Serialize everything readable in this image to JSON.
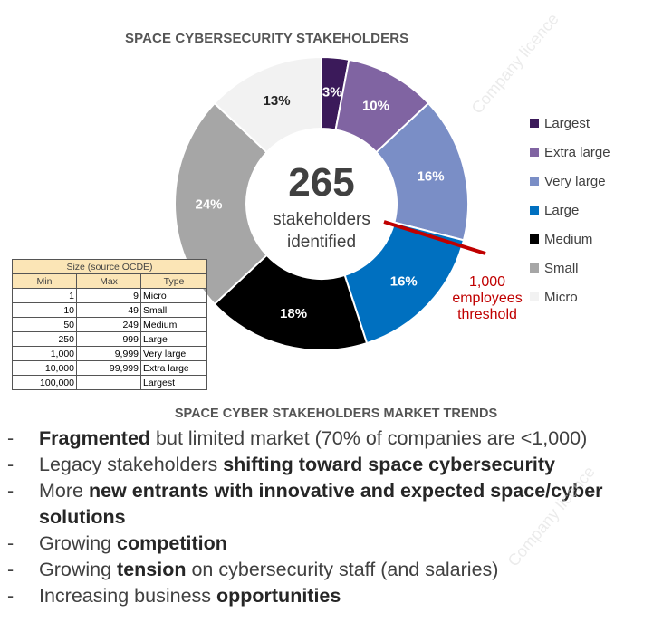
{
  "chart_data": {
    "type": "pie",
    "style": "donut",
    "title": "SPACE CYBERSECURITY STAKEHOLDERS",
    "center_value": "265",
    "center_caption_line1": "stakeholders",
    "center_caption_line2": "identified",
    "slices": [
      {
        "name": "Largest",
        "value": 3,
        "label": "3%",
        "color": "#3b1a5a"
      },
      {
        "name": "Extra large",
        "value": 10,
        "label": "10%",
        "color": "#8064a2"
      },
      {
        "name": "Very large",
        "value": 16,
        "label": "16%",
        "color": "#7a8ec6"
      },
      {
        "name": "Large",
        "value": 16,
        "label": "16%",
        "color": "#0070c0"
      },
      {
        "name": "Medium",
        "value": 18,
        "label": "18%",
        "color": "#000000"
      },
      {
        "name": "Small",
        "value": 24,
        "label": "24%",
        "color": "#a6a6a6"
      },
      {
        "name": "Micro",
        "value": 13,
        "label": "13%",
        "color": "#f2f2f2"
      }
    ],
    "legend_position": "right",
    "annotation": {
      "line1": "1,000",
      "line2": "employees",
      "line3": "threshold",
      "color": "#c00000"
    }
  },
  "size_table": {
    "caption": "Size (source OCDE)",
    "headers": [
      "Min",
      "Max",
      "Type"
    ],
    "rows": [
      [
        "1",
        "9",
        "Micro"
      ],
      [
        "10",
        "49",
        "Small"
      ],
      [
        "50",
        "249",
        "Medium"
      ],
      [
        "250",
        "999",
        "Large"
      ],
      [
        "1,000",
        "9,999",
        "Very large"
      ],
      [
        "10,000",
        "99,999",
        "Extra large"
      ],
      [
        "100,000",
        "",
        "Largest"
      ]
    ]
  },
  "trends": {
    "title": "SPACE CYBER STAKEHOLDERS MARKET TRENDS",
    "items": [
      [
        {
          "t": "Fragmented",
          "b": true
        },
        {
          "t": " but limited market (70% of companies are <1,000)",
          "b": false
        }
      ],
      [
        {
          "t": "Legacy stakeholders ",
          "b": false
        },
        {
          "t": "shifting toward space cybersecurity",
          "b": true
        }
      ],
      [
        {
          "t": "More ",
          "b": false
        },
        {
          "t": "new entrants with innovative and expected space/cyber solutions",
          "b": true
        }
      ],
      [
        {
          "t": "Growing ",
          "b": false
        },
        {
          "t": "competition",
          "b": true
        }
      ],
      [
        {
          "t": "Growing ",
          "b": false
        },
        {
          "t": "tension",
          "b": true
        },
        {
          "t": " on cybersecurity staff (and salaries)",
          "b": false
        }
      ],
      [
        {
          "t": "Increasing business ",
          "b": false
        },
        {
          "t": "opportunities",
          "b": true
        }
      ]
    ]
  },
  "watermark": "Company licence"
}
